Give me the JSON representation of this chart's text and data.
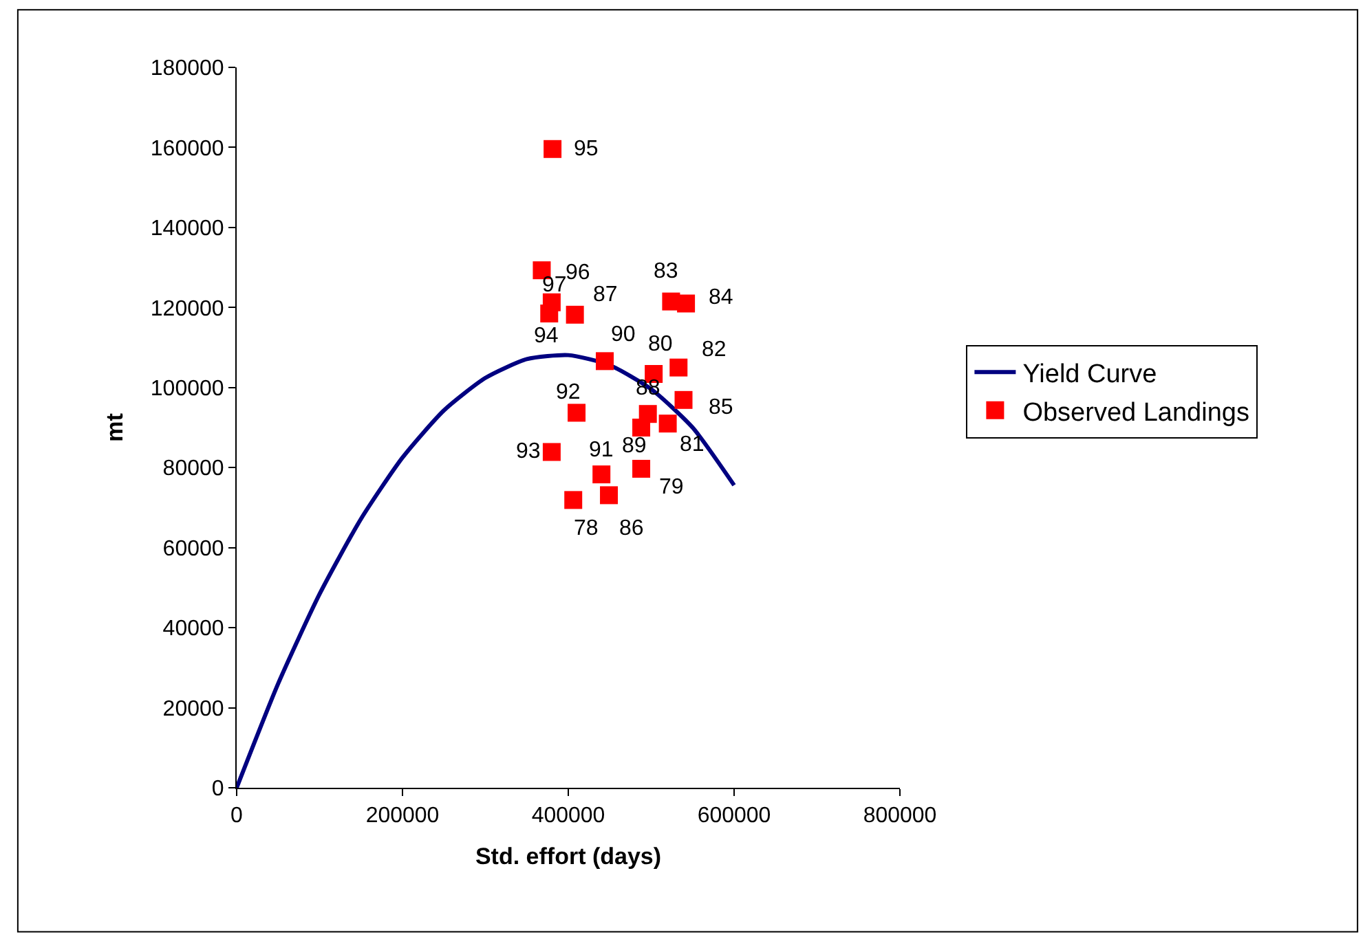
{
  "chart_data": {
    "type": "scatter",
    "xlabel": "Std. effort (days)",
    "ylabel": "mt",
    "xlim": [
      0,
      800000
    ],
    "xticks": [
      0,
      200000,
      400000,
      600000,
      800000
    ],
    "ylim": [
      0,
      180000
    ],
    "yticks": [
      0,
      20000,
      40000,
      60000,
      80000,
      100000,
      120000,
      140000,
      160000,
      180000
    ],
    "grid": false,
    "legend": "right",
    "series": [
      {
        "name": "Yield Curve",
        "type": "line",
        "color": "#000080",
        "marker": "none",
        "line_style": "solid",
        "x": [
          0,
          50000,
          100000,
          150000,
          200000,
          250000,
          300000,
          350000,
          400000,
          450000,
          500000,
          550000,
          600000
        ],
        "values": [
          0,
          26000,
          48400,
          67200,
          82500,
          94300,
          102400,
          107100,
          108100,
          105600,
          99600,
          90000,
          75600
        ]
      },
      {
        "name": "Observed Landings",
        "color": "#ff0000",
        "marker": "square",
        "x": [
          381000,
          368000,
          380000,
          377000,
          408000,
          524000,
          542000,
          444000,
          503000,
          533000,
          539000,
          410000,
          496000,
          520000,
          488000,
          380000,
          440000,
          488000,
          406000,
          449000
        ],
        "values": [
          159600,
          129300,
          121300,
          118500,
          118200,
          121500,
          121000,
          106600,
          103400,
          105000,
          96900,
          93700,
          93400,
          91000,
          90000,
          83900,
          78300,
          79700,
          71900,
          73100
        ]
      }
    ],
    "annotations": [
      {
        "text": "95",
        "x": 381000,
        "y": 159600
      },
      {
        "text": "96",
        "x": 368000,
        "y": 129300
      },
      {
        "text": "97",
        "x": 380000,
        "y": 121300
      },
      {
        "text": "94",
        "x": 377000,
        "y": 118500
      },
      {
        "text": "87",
        "x": 408000,
        "y": 118200
      },
      {
        "text": "83",
        "x": 524000,
        "y": 121500
      },
      {
        "text": "84",
        "x": 542000,
        "y": 121000
      },
      {
        "text": "90",
        "x": 444000,
        "y": 106600
      },
      {
        "text": "80",
        "x": 503000,
        "y": 103400
      },
      {
        "text": "82",
        "x": 533000,
        "y": 105000
      },
      {
        "text": "85",
        "x": 539000,
        "y": 96900
      },
      {
        "text": "92",
        "x": 410000,
        "y": 93700
      },
      {
        "text": "88",
        "x": 496000,
        "y": 93400
      },
      {
        "text": "81",
        "x": 520000,
        "y": 91000
      },
      {
        "text": "89",
        "x": 488000,
        "y": 90000
      },
      {
        "text": "93",
        "x": 380000,
        "y": 83900
      },
      {
        "text": "91",
        "x": 440000,
        "y": 78300
      },
      {
        "text": "79",
        "x": 488000,
        "y": 79700
      },
      {
        "text": "78",
        "x": 406000,
        "y": 71900
      },
      {
        "text": "86",
        "x": 449000,
        "y": 73100
      }
    ]
  }
}
